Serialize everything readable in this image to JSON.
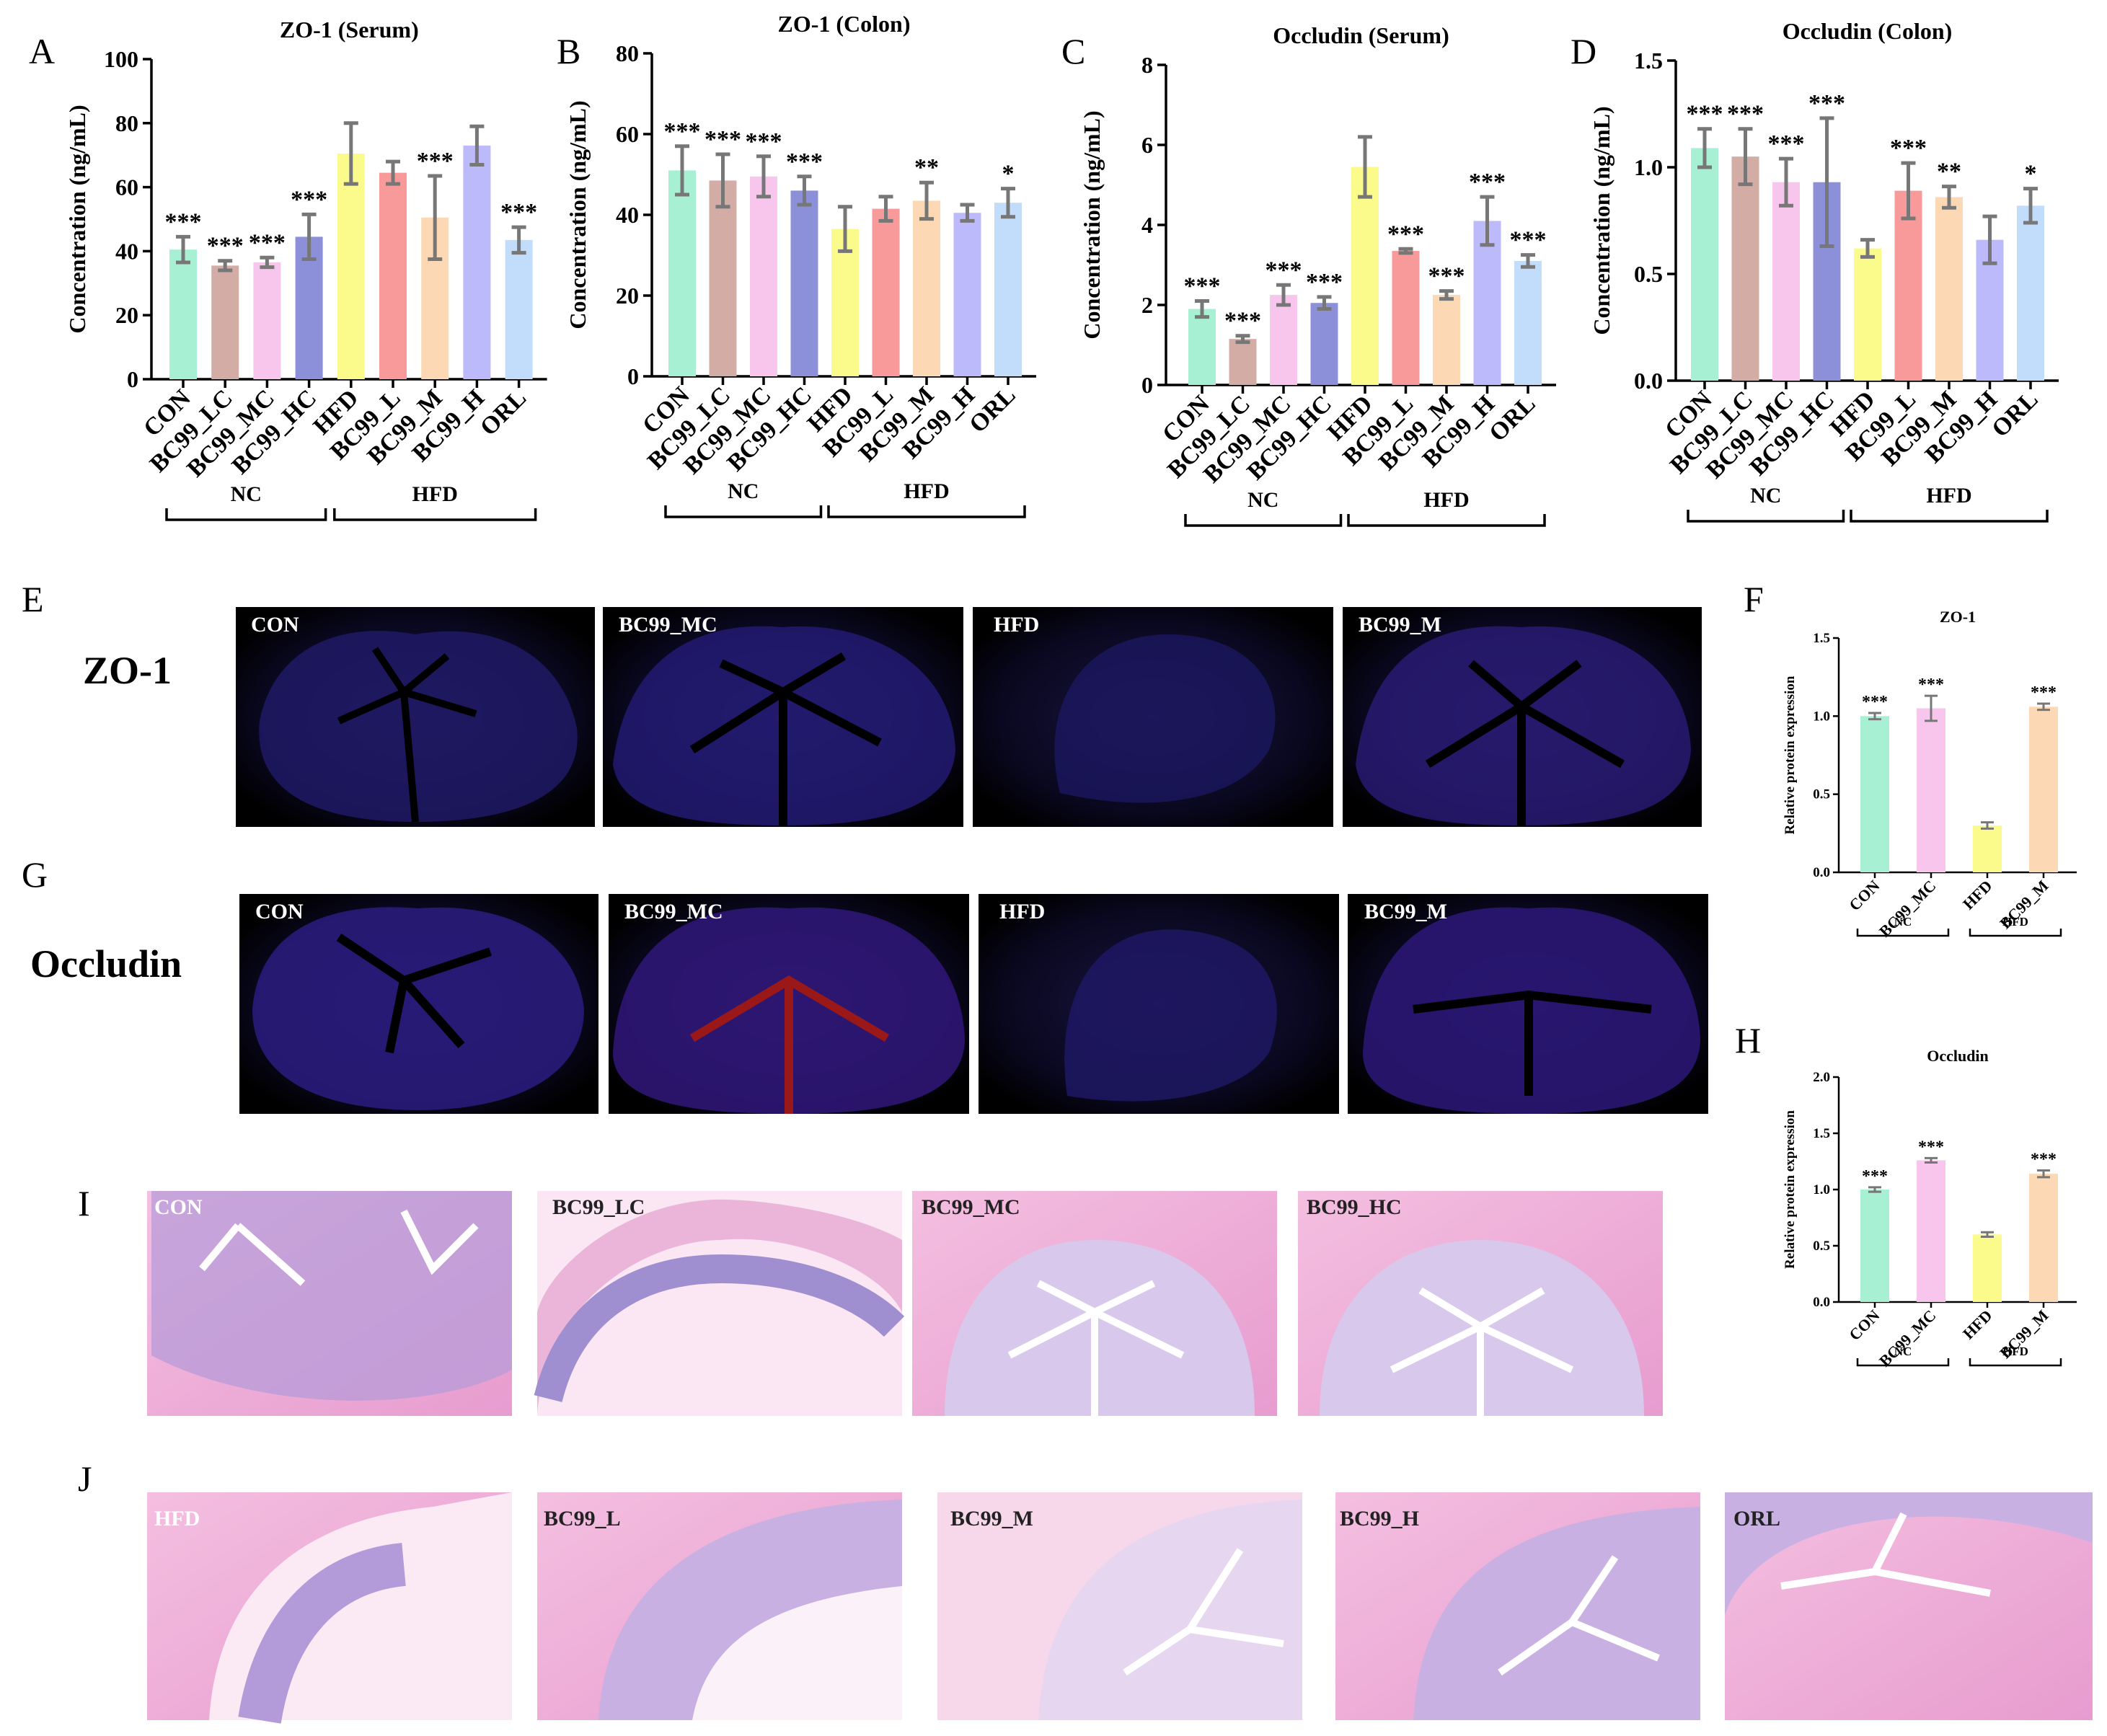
{
  "colors": {
    "CON": "#a8f0d4",
    "BC99_LC": "#d3aca6",
    "BC99_MC": "#f8c6ec",
    "BC99_HC": "#8c90d8",
    "HFD": "#fbfb8c",
    "BC99_L": "#f99a9a",
    "BC99_M": "#fcd9b4",
    "BC99_H": "#bdbafc",
    "ORL": "#c2dcfb"
  },
  "chart_data": [
    {
      "id": "A",
      "type": "bar",
      "title": "ZO-1 (Serum)",
      "ylabel": "Concentration (ng/mL)",
      "ylim": [
        0,
        100
      ],
      "yticks": [
        0,
        20,
        40,
        60,
        80,
        100
      ],
      "tick_labels": [
        "0",
        "20",
        "40",
        "60",
        "80",
        "100"
      ],
      "categories": [
        "CON",
        "BC99_LC",
        "BC99_MC",
        "BC99_HC",
        "HFD",
        "BC99_L",
        "BC99_M",
        "BC99_H",
        "ORL"
      ],
      "values": [
        40.5,
        35.5,
        36.5,
        44.5,
        70.5,
        64.5,
        50.5,
        73,
        43.5
      ],
      "errors": [
        4,
        1.5,
        1.5,
        7,
        9.5,
        3.5,
        13,
        6,
        4
      ],
      "significance": [
        "***",
        "***",
        "***",
        "***",
        "",
        "",
        "***",
        "",
        "***"
      ],
      "groups": [
        {
          "label": "NC",
          "from": 0,
          "to": 3
        },
        {
          "label": "HFD",
          "from": 4,
          "to": 8
        }
      ]
    },
    {
      "id": "B",
      "type": "bar",
      "title": "ZO-1 (Colon)",
      "ylabel": "Concentration (ng/mL)",
      "ylim": [
        0,
        80
      ],
      "yticks": [
        0,
        20,
        40,
        60,
        80
      ],
      "tick_labels": [
        "0",
        "20",
        "40",
        "60",
        "80"
      ],
      "categories": [
        "CON",
        "BC99_LC",
        "BC99_MC",
        "BC99_HC",
        "HFD",
        "BC99_L",
        "BC99_M",
        "BC99_H",
        "ORL"
      ],
      "values": [
        51,
        48.5,
        49.5,
        46,
        36.5,
        41.5,
        43.5,
        40.5,
        43
      ],
      "errors": [
        6,
        6.5,
        5,
        3.5,
        5.5,
        3,
        4.5,
        2,
        3.5
      ],
      "significance": [
        "***",
        "***",
        "***",
        "***",
        "",
        "",
        "**",
        "",
        "*"
      ],
      "groups": [
        {
          "label": "NC",
          "from": 0,
          "to": 3
        },
        {
          "label": "HFD",
          "from": 4,
          "to": 8
        }
      ]
    },
    {
      "id": "C",
      "type": "bar",
      "title": "Occludin (Serum)",
      "ylabel": "Concentration (ng/mL)",
      "ylim": [
        0,
        8
      ],
      "yticks": [
        0,
        2,
        4,
        6,
        8
      ],
      "tick_labels": [
        "0",
        "2",
        "4",
        "6",
        "8"
      ],
      "categories": [
        "CON",
        "BC99_LC",
        "BC99_MC",
        "BC99_HC",
        "HFD",
        "BC99_L",
        "BC99_M",
        "BC99_H",
        "ORL"
      ],
      "values": [
        1.9,
        1.15,
        2.25,
        2.05,
        5.45,
        3.35,
        2.25,
        4.1,
        3.1
      ],
      "errors": [
        0.2,
        0.08,
        0.25,
        0.15,
        0.75,
        0.05,
        0.1,
        0.6,
        0.15
      ],
      "significance": [
        "***",
        "***",
        "***",
        "***",
        "",
        "***",
        "***",
        "***",
        "***"
      ],
      "groups": [
        {
          "label": "NC",
          "from": 0,
          "to": 3
        },
        {
          "label": "HFD",
          "from": 4,
          "to": 8
        }
      ]
    },
    {
      "id": "D",
      "type": "bar",
      "title": "Occludin (Colon)",
      "ylabel": "Concentration (ng/mL)",
      "ylim": [
        0,
        1.5
      ],
      "yticks": [
        0,
        0.5,
        1.0,
        1.5
      ],
      "tick_labels": [
        "0.0",
        "0.5",
        "1.0",
        "1.5"
      ],
      "categories": [
        "CON",
        "BC99_LC",
        "BC99_MC",
        "BC99_HC",
        "HFD",
        "BC99_L",
        "BC99_M",
        "BC99_H",
        "ORL"
      ],
      "values": [
        1.09,
        1.05,
        0.93,
        0.93,
        0.62,
        0.89,
        0.86,
        0.66,
        0.82
      ],
      "errors": [
        0.09,
        0.13,
        0.11,
        0.3,
        0.04,
        0.13,
        0.05,
        0.11,
        0.08
      ],
      "significance": [
        "***",
        "***",
        "***",
        "***",
        "",
        "***",
        "**",
        "",
        "*"
      ],
      "groups": [
        {
          "label": "NC",
          "from": 0,
          "to": 3
        },
        {
          "label": "HFD",
          "from": 4,
          "to": 8
        }
      ]
    },
    {
      "id": "F",
      "type": "bar",
      "title": "ZO-1",
      "ylabel": "Relative protein expression",
      "ylim": [
        0,
        1.5
      ],
      "yticks": [
        0,
        0.5,
        1.0,
        1.5
      ],
      "tick_labels": [
        "0.0",
        "0.5",
        "1.0",
        "1.5"
      ],
      "categories": [
        "CON",
        "BC99_MC",
        "HFD",
        "BC99_M"
      ],
      "values": [
        1.0,
        1.05,
        0.3,
        1.06
      ],
      "errors": [
        0.02,
        0.08,
        0.02,
        0.02
      ],
      "significance": [
        "***",
        "***",
        "",
        "***"
      ],
      "groups": [
        {
          "label": "NC",
          "from": 0,
          "to": 1
        },
        {
          "label": "HFD",
          "from": 2,
          "to": 3
        }
      ]
    },
    {
      "id": "H",
      "type": "bar",
      "title": "Occludin",
      "ylabel": "Relative protein expression",
      "ylim": [
        0,
        2.0
      ],
      "yticks": [
        0,
        0.5,
        1.0,
        1.5,
        2.0
      ],
      "tick_labels": [
        "0.0",
        "0.5",
        "1.0",
        "1.5",
        "2.0"
      ],
      "categories": [
        "CON",
        "BC99_MC",
        "HFD",
        "BC99_M"
      ],
      "values": [
        1.0,
        1.26,
        0.6,
        1.14
      ],
      "errors": [
        0.02,
        0.02,
        0.02,
        0.03
      ],
      "significance": [
        "***",
        "***",
        "",
        "***"
      ],
      "groups": [
        {
          "label": "NC",
          "from": 0,
          "to": 1
        },
        {
          "label": "HFD",
          "from": 2,
          "to": 3
        }
      ]
    }
  ],
  "panel_letters": {
    "A": "A",
    "B": "B",
    "C": "C",
    "D": "D",
    "E": "E",
    "F": "F",
    "G": "G",
    "H": "H",
    "I": "I",
    "J": "J"
  },
  "row_labels": {
    "zo1": "ZO-1",
    "occludin": "Occludin"
  },
  "if_images": {
    "zo1": [
      "CON",
      "BC99_MC",
      "HFD",
      "BC99_M"
    ],
    "occludin": [
      "CON",
      "BC99_MC",
      "HFD",
      "BC99_M"
    ]
  },
  "he_images": {
    "row_i": [
      "CON",
      "BC99_LC",
      "BC99_MC",
      "BC99_HC"
    ],
    "row_j": [
      "HFD",
      "BC99_L",
      "BC99_M",
      "BC99_H",
      "ORL"
    ]
  }
}
